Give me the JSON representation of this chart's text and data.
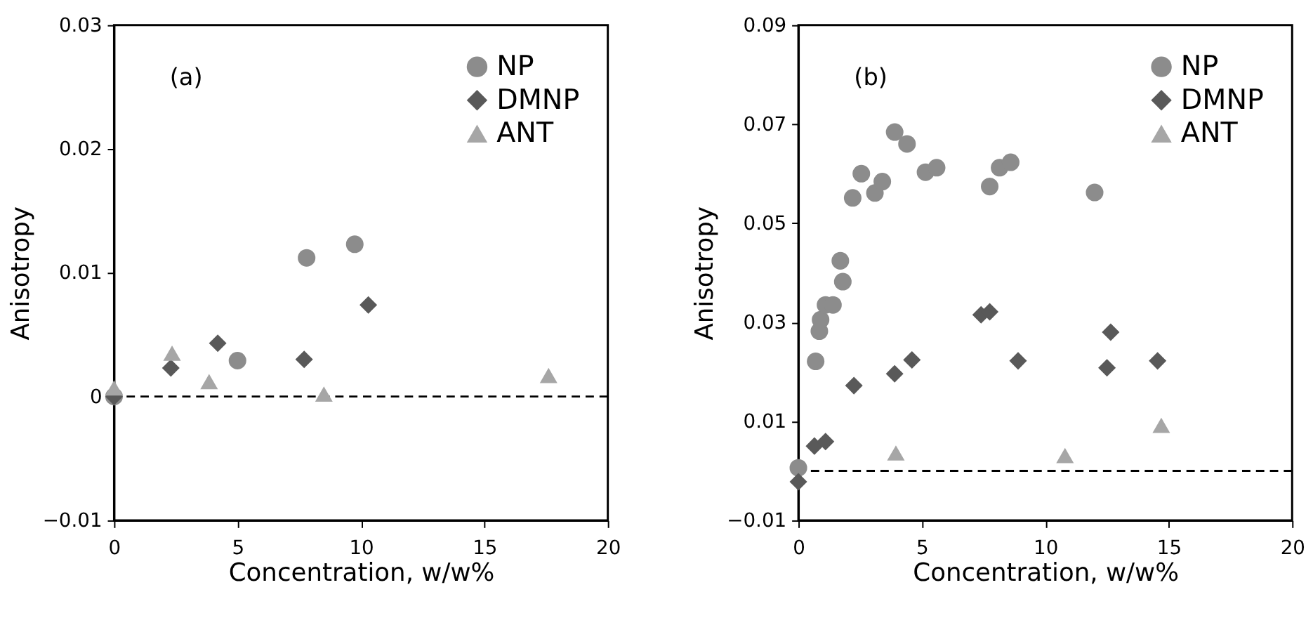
{
  "chart_data": [
    {
      "type": "scatter",
      "xlabel": "Concentration, w/w%",
      "ylabel": "Anisotropy",
      "annotations": [
        "(a)"
      ],
      "xlim": [
        0,
        20
      ],
      "xticks": [
        0,
        5,
        10,
        15,
        20
      ],
      "ylim": [
        -0.01,
        0.03
      ],
      "yticks": [
        -0.01,
        0,
        0.01,
        0.02,
        0.03
      ],
      "grid": false,
      "legend": "top right",
      "ref_lines": [
        {
          "axis": "y",
          "value": 0,
          "line_style": "dashed",
          "color": "#000000"
        }
      ],
      "series": [
        {
          "name": "NP",
          "color": "#8c8c8c",
          "marker": "circle",
          "x": [
            0,
            5.0,
            7.8,
            9.75
          ],
          "values": [
            0,
            0.0029,
            0.0112,
            0.0123
          ]
        },
        {
          "name": "DMNP",
          "color": "#595959",
          "marker": "diamond",
          "x": [
            0,
            2.3,
            4.2,
            7.7,
            10.3
          ],
          "values": [
            0,
            0.0023,
            0.0043,
            0.003,
            0.0074
          ]
        },
        {
          "name": "ANT",
          "color": "#a6a6a6",
          "marker": "triangle",
          "x": [
            0,
            2.35,
            3.85,
            8.5,
            17.6
          ],
          "values": [
            0.0007,
            0.0035,
            0.0012,
            0.0002,
            0.0017
          ]
        }
      ]
    },
    {
      "type": "scatter",
      "xlabel": "Concentration, w/w%",
      "ylabel": "Anisotropy",
      "annotations": [
        "(b)"
      ],
      "xlim": [
        0,
        20
      ],
      "xticks": [
        0,
        5,
        10,
        15,
        20
      ],
      "ylim": [
        -0.01,
        0.09
      ],
      "yticks": [
        -0.01,
        0.01,
        0.03,
        0.05,
        0.07,
        0.09
      ],
      "grid": false,
      "legend": "top right",
      "ref_lines": [
        {
          "axis": "y",
          "value": 0,
          "line_style": "dashed",
          "color": "#000000"
        }
      ],
      "series": [
        {
          "name": "NP",
          "color": "#8c8c8c",
          "marker": "circle",
          "x": [
            0,
            0.7,
            0.85,
            0.9,
            1.1,
            1.4,
            1.7,
            1.8,
            2.2,
            2.55,
            3.1,
            3.4,
            3.9,
            4.4,
            5.15,
            5.6,
            7.75,
            8.15,
            8.6,
            12.0
          ],
          "values": [
            0.0006,
            0.0221,
            0.0282,
            0.0305,
            0.0335,
            0.0335,
            0.0424,
            0.0382,
            0.0551,
            0.06,
            0.0561,
            0.0584,
            0.0684,
            0.066,
            0.0603,
            0.0612,
            0.0574,
            0.0612,
            0.0623,
            0.0562
          ]
        },
        {
          "name": "DMNP",
          "color": "#595959",
          "marker": "diamond",
          "x": [
            0,
            0.65,
            1.1,
            2.25,
            3.9,
            4.6,
            7.4,
            7.75,
            8.9,
            12.5,
            12.65,
            14.55
          ],
          "values": [
            -0.0022,
            0.005,
            0.0059,
            0.0172,
            0.0196,
            0.0224,
            0.0315,
            0.0321,
            0.0222,
            0.0208,
            0.028,
            0.0222
          ]
        },
        {
          "name": "ANT",
          "color": "#a6a6a6",
          "marker": "triangle",
          "x": [
            3.95,
            10.8,
            14.7
          ],
          "values": [
            0.0036,
            0.0031,
            0.0092
          ]
        }
      ]
    }
  ]
}
